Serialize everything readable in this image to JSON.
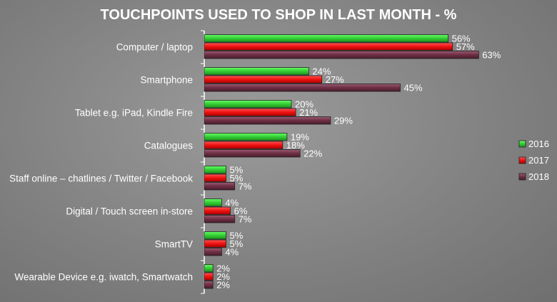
{
  "chart_data": {
    "type": "bar",
    "orientation": "horizontal",
    "title": "TOUCHPOINTS USED TO SHOP IN LAST MONTH - %",
    "categories": [
      "Computer / laptop",
      "Smartphone",
      "Tablet e.g. iPad, Kindle Fire",
      "Catalogues",
      "Staff online – chatlines / Twitter / Facebook",
      "Digital / Touch screen in-store",
      "SmartTV",
      "Wearable Device e.g. iwatch, Smartwatch"
    ],
    "series": [
      {
        "name": "2016",
        "color": "#33cc33",
        "values": [
          56,
          24,
          20,
          19,
          5,
          4,
          5,
          2
        ]
      },
      {
        "name": "2017",
        "color": "#ee1111",
        "values": [
          57,
          27,
          21,
          18,
          5,
          6,
          5,
          2
        ]
      },
      {
        "name": "2018",
        "color": "#6e2f45",
        "values": [
          63,
          45,
          29,
          22,
          7,
          7,
          4,
          2
        ]
      }
    ],
    "value_suffix": "%",
    "xlim": [
      0,
      100
    ],
    "grid": false,
    "legend_position": "right",
    "text_color": "#ffffff",
    "axis_color": "#ffffff"
  }
}
